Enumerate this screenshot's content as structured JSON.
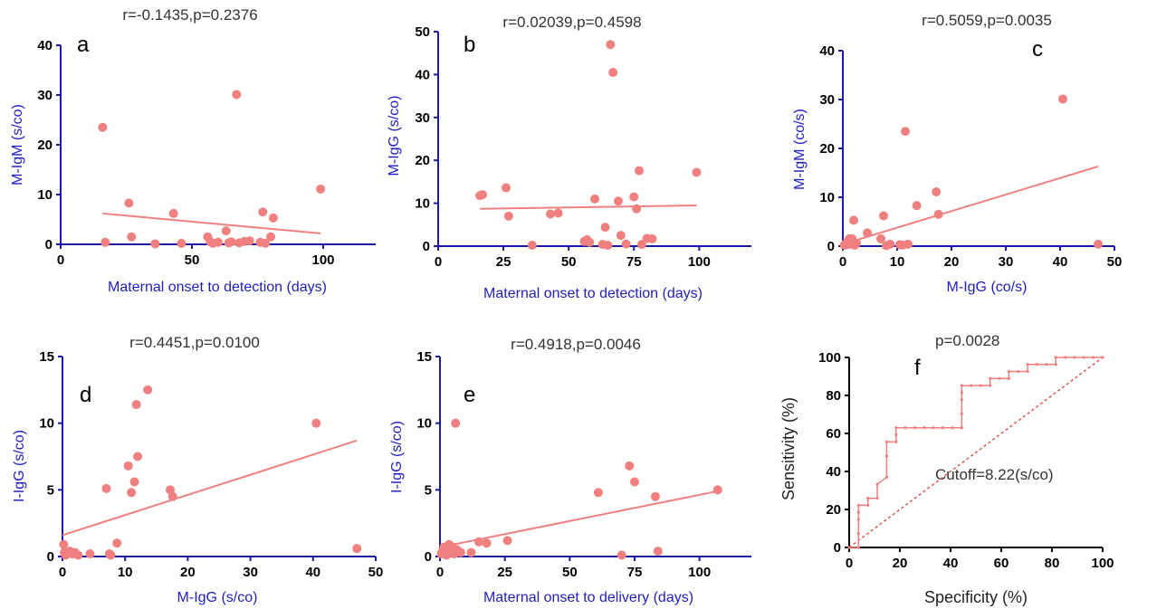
{
  "chart_data": [
    {
      "panel": "a",
      "type": "scatter",
      "title": "r=-0.1435,p=0.2376",
      "xlabel": "Maternal onset to detection (days)",
      "ylabel": "M-IgM (s/co)",
      "xlim": [
        0,
        120
      ],
      "ylim": [
        0,
        40
      ],
      "xticks": [
        "0",
        "50",
        "100"
      ],
      "yticks": [
        "0",
        "10",
        "20",
        "30",
        "40"
      ],
      "x": [
        16,
        17,
        26,
        27,
        36,
        43,
        46,
        56,
        57,
        58,
        60,
        63,
        64,
        65,
        67,
        68,
        70,
        72,
        76,
        77,
        78,
        80,
        81,
        99
      ],
      "y": [
        23.5,
        0.4,
        8.3,
        1.5,
        0.1,
        6.2,
        0.2,
        1.5,
        0.5,
        0.2,
        0.4,
        2.7,
        0.3,
        0.5,
        30.1,
        0.3,
        0.6,
        0.7,
        0.4,
        6.5,
        0.2,
        1.5,
        5.3,
        11.1
      ],
      "fit": {
        "x": [
          16,
          99
        ],
        "y": [
          6.2,
          2.2
        ]
      }
    },
    {
      "panel": "b",
      "type": "scatter",
      "title": "r=0.02039,p=0.4598",
      "xlabel": "Maternal onset to detection (days)",
      "ylabel": "M-IgG (s/co)",
      "xlim": [
        0,
        120
      ],
      "ylim": [
        0,
        50
      ],
      "xticks": [
        "0",
        "25",
        "50",
        "75",
        "100"
      ],
      "yticks": [
        "0",
        "10",
        "20",
        "30",
        "40",
        "50"
      ],
      "x": [
        16,
        17,
        26,
        27,
        36,
        43,
        46,
        56,
        57,
        58,
        60,
        63,
        64,
        65,
        66,
        67,
        69,
        70,
        72,
        75,
        76,
        77,
        78,
        80,
        82,
        99
      ],
      "y": [
        11.8,
        12.0,
        13.6,
        7.0,
        0.2,
        7.5,
        7.7,
        1.1,
        1.5,
        0.9,
        11.0,
        0.4,
        4.4,
        0.2,
        47.0,
        40.5,
        10.5,
        2.5,
        0.5,
        11.5,
        8.7,
        17.6,
        0.4,
        1.8,
        1.7,
        17.2
      ],
      "fit": {
        "x": [
          16,
          99
        ],
        "y": [
          8.7,
          9.5
        ]
      }
    },
    {
      "panel": "c",
      "type": "scatter",
      "title": "r=0.5059,p=0.0035",
      "xlabel": "M-IgG (co/s)",
      "ylabel": "M-IgM (co/s)",
      "xlim": [
        0,
        50
      ],
      "ylim": [
        0,
        40
      ],
      "xticks": [
        "0",
        "10",
        "20",
        "30",
        "40",
        "50"
      ],
      "yticks": [
        "0",
        "10",
        "20",
        "30",
        "40"
      ],
      "x": [
        0.3,
        0.5,
        0.8,
        1.0,
        1.2,
        1.5,
        1.7,
        2.0,
        2.2,
        2.5,
        4.5,
        7.0,
        7.5,
        8.0,
        8.7,
        10.5,
        11.0,
        11.5,
        12.0,
        13.6,
        17.2,
        17.6,
        40.5,
        47.0
      ],
      "y": [
        0.2,
        0.5,
        0.3,
        1.1,
        1.5,
        0.4,
        1.5,
        5.3,
        0.2,
        0.6,
        2.7,
        1.5,
        6.2,
        0.1,
        0.4,
        0.3,
        0.2,
        23.5,
        0.4,
        8.3,
        11.1,
        6.5,
        30.1,
        0.4
      ],
      "fit": {
        "x": [
          0,
          47
        ],
        "y": [
          0.4,
          16.3
        ]
      }
    },
    {
      "panel": "d",
      "type": "scatter",
      "title": "r=0.4451,p=0.0100",
      "xlabel": "M-IgG (s/co)",
      "ylabel": "I-IgG (s/co)",
      "xlim": [
        0,
        50
      ],
      "ylim": [
        0,
        15
      ],
      "xticks": [
        "0",
        "10",
        "20",
        "30",
        "40",
        "50"
      ],
      "yticks": [
        "0",
        "5",
        "10",
        "15"
      ],
      "x": [
        0.2,
        0.3,
        0.5,
        0.8,
        1.0,
        1.2,
        1.5,
        1.7,
        2.0,
        2.5,
        4.4,
        7.0,
        7.5,
        7.7,
        8.7,
        10.5,
        11.0,
        11.5,
        11.8,
        12.0,
        13.6,
        17.2,
        17.6,
        40.5,
        47.0
      ],
      "y": [
        0.9,
        0.3,
        0.1,
        0.2,
        0.3,
        0.4,
        0.2,
        0.2,
        0.3,
        0.1,
        0.2,
        5.1,
        0.2,
        0.1,
        1.0,
        6.8,
        4.8,
        5.6,
        11.4,
        7.5,
        12.5,
        5.0,
        4.5,
        10.0,
        0.6
      ],
      "fit": {
        "x": [
          0,
          47
        ],
        "y": [
          1.6,
          8.7
        ]
      }
    },
    {
      "panel": "e",
      "type": "scatter",
      "title": "r=0.4918,p=0.0046",
      "xlabel": "Maternal onset to delivery (days)",
      "ylabel": "I-IgG (s/co)",
      "xlim": [
        0,
        120
      ],
      "ylim": [
        0,
        15
      ],
      "xticks": [
        "0",
        "25",
        "50",
        "75",
        "100"
      ],
      "yticks": [
        "0",
        "5",
        "10",
        "15"
      ],
      "x": [
        0.5,
        1,
        1.5,
        2,
        2.5,
        3,
        3.5,
        4,
        4.5,
        5,
        5.5,
        6,
        6.5,
        8,
        12,
        15,
        18,
        26,
        61,
        70,
        73,
        75,
        83,
        84,
        107
      ],
      "y": [
        0.2,
        0.4,
        0.7,
        0.3,
        0.1,
        0.6,
        0.9,
        0.5,
        0.3,
        0.7,
        0.2,
        10.0,
        0.5,
        0.3,
        0.3,
        1.1,
        1.0,
        1.2,
        4.8,
        0.1,
        6.8,
        5.6,
        4.5,
        0.4,
        5.0
      ],
      "fit": {
        "x": [
          0,
          107
        ],
        "y": [
          0.7,
          4.9
        ]
      }
    },
    {
      "panel": "f",
      "type": "line",
      "annotation": "p=0.0028",
      "cutoff_label": "Cutoff=8.22(s/co)",
      "xlabel": "Specificity (%)",
      "ylabel": "Sensitivity (%)",
      "xlim": [
        0,
        100
      ],
      "ylim": [
        0,
        100
      ],
      "xticks": [
        "0",
        "20",
        "40",
        "60",
        "80",
        "100"
      ],
      "yticks": [
        "0",
        "20",
        "40",
        "60",
        "80",
        "100"
      ],
      "x": [
        0,
        3.7,
        3.7,
        3.7,
        3.7,
        3.7,
        7.4,
        7.4,
        11.1,
        11.1,
        14.8,
        14.8,
        14.8,
        18.5,
        18.5,
        18.5,
        22.2,
        25.9,
        29.6,
        33.3,
        37,
        40.7,
        44.4,
        44.4,
        44.4,
        44.4,
        44.4,
        48.1,
        51.9,
        55.6,
        55.6,
        59.3,
        63,
        63,
        66.7,
        70.4,
        70.4,
        74.1,
        77.8,
        81.5,
        81.5,
        85.2,
        88.9,
        92.6,
        96.3,
        100
      ],
      "y": [
        0,
        0,
        7.4,
        14.8,
        18.5,
        22.2,
        22.2,
        25.9,
        25.9,
        33.3,
        37,
        48.1,
        55.6,
        55.6,
        59.3,
        63,
        63,
        63,
        63,
        63,
        63,
        63,
        63,
        70.4,
        77.8,
        81.5,
        85.2,
        85.2,
        85.2,
        85.2,
        88.9,
        88.9,
        88.9,
        92.6,
        92.6,
        92.6,
        96.3,
        96.3,
        96.3,
        96.3,
        100,
        100,
        100,
        100,
        100,
        100
      ],
      "reference_line": {
        "x": [
          0,
          100
        ],
        "y": [
          0,
          100
        ]
      }
    }
  ],
  "colors": {
    "points": "#f08080",
    "fit_line": "#f08080",
    "axis": "#1a1aa6",
    "axis_label": "#1f1fbf",
    "roc_line": "#f08080",
    "roc_reference": "#e05050",
    "bw_axis": "#000000"
  }
}
